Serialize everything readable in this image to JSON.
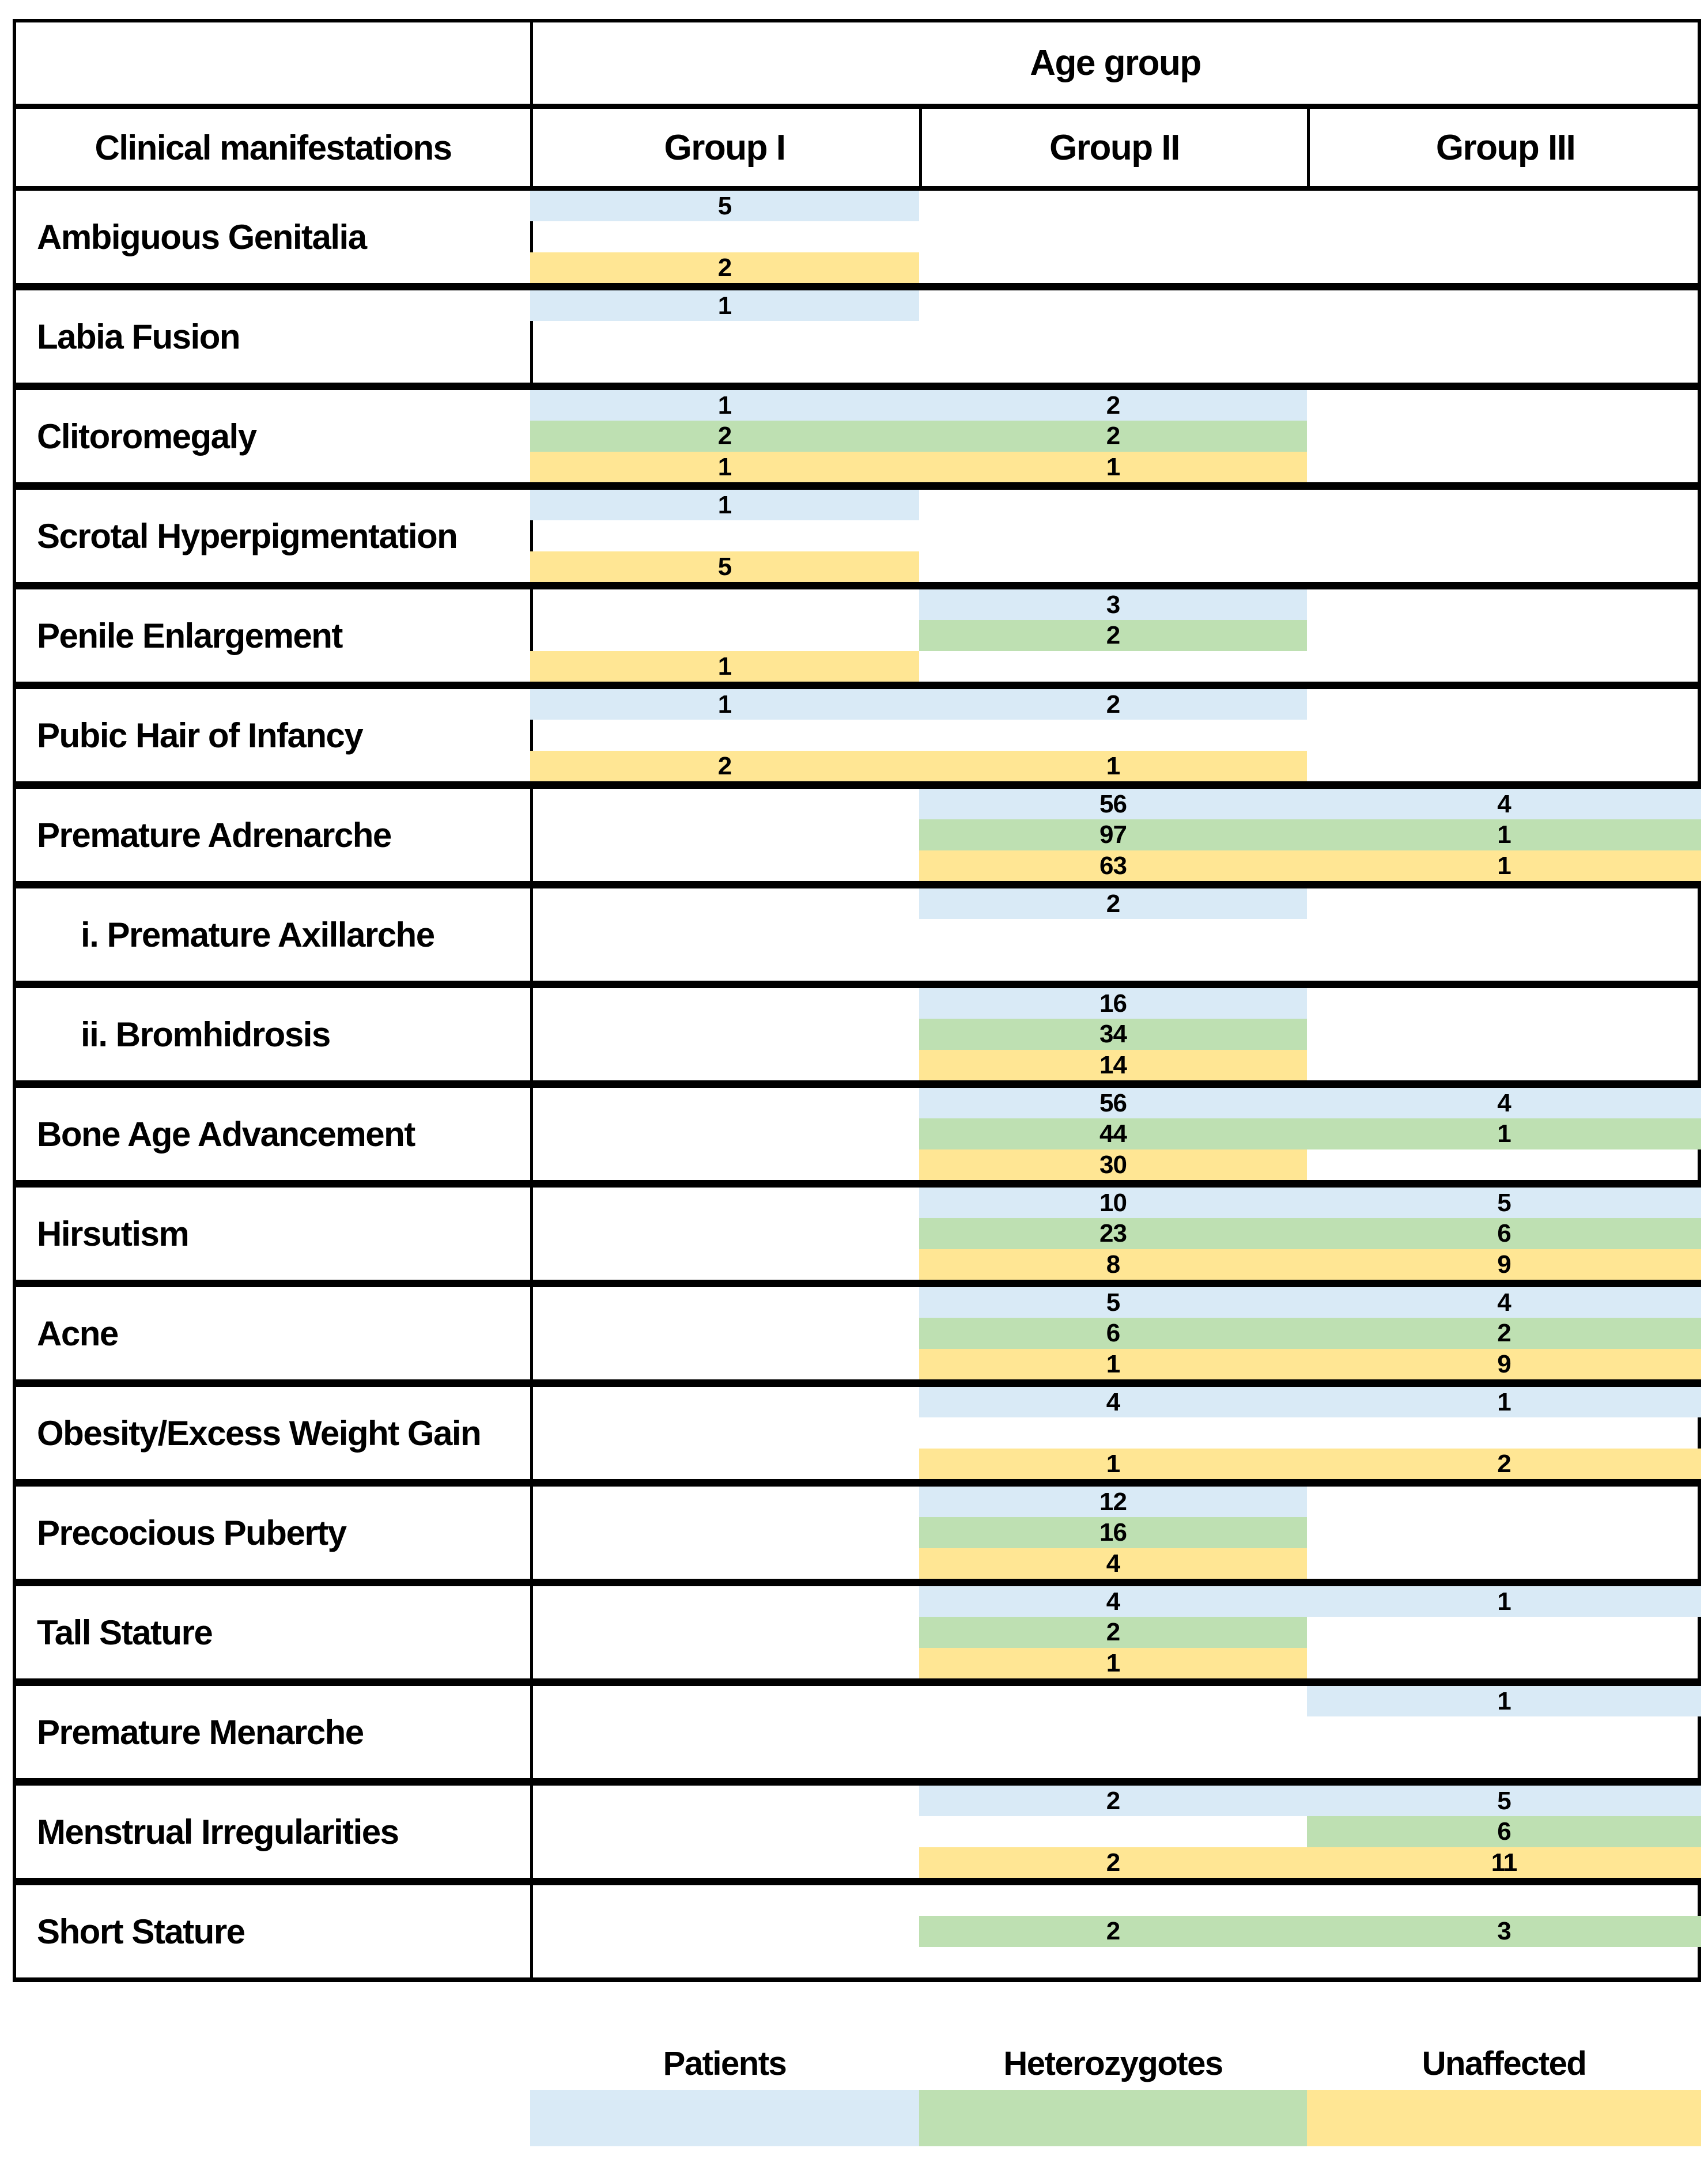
{
  "header": {
    "age_group": "Age group",
    "clinical": "Clinical manifestations",
    "groups": [
      "Group I",
      "Group II",
      "Group III"
    ]
  },
  "legend": {
    "items": [
      {
        "label": "Patients",
        "series": "patients"
      },
      {
        "label": "Heterozygotes",
        "series": "heterozygotes"
      },
      {
        "label": "Unaffected",
        "series": "unaffected"
      }
    ]
  },
  "colors": {
    "patients": "#d9eaf6",
    "heterozygotes": "#bee0b2",
    "unaffected": "#ffe694",
    "grid": "#000000"
  },
  "chart_data": {
    "type": "bar",
    "layout": "table-embedded-horizontal-bars",
    "column_header": "Age group",
    "row_header": "Clinical manifestations",
    "groups": [
      "Group I",
      "Group II",
      "Group III"
    ],
    "series_names": [
      "Patients",
      "Heterozygotes",
      "Unaffected"
    ],
    "legend_position": "bottom",
    "rows": [
      {
        "label": "Ambiguous Genitalia",
        "indent": false,
        "patients": {
          "span": [
            1,
            1
          ],
          "values": [
            [
              1,
              5
            ]
          ]
        },
        "heterozygotes": null,
        "unaffected": {
          "span": [
            1,
            1
          ],
          "values": [
            [
              1,
              2
            ]
          ]
        }
      },
      {
        "label": "Labia Fusion",
        "indent": false,
        "patients": {
          "span": [
            1,
            1
          ],
          "values": [
            [
              1,
              1
            ]
          ]
        },
        "heterozygotes": null,
        "unaffected": null
      },
      {
        "label": "Clitoromegaly",
        "indent": false,
        "patients": {
          "span": [
            1,
            2
          ],
          "values": [
            [
              1,
              1
            ],
            [
              2,
              2
            ]
          ]
        },
        "heterozygotes": {
          "span": [
            1,
            2
          ],
          "values": [
            [
              1,
              2
            ],
            [
              2,
              2
            ]
          ]
        },
        "unaffected": {
          "span": [
            1,
            2
          ],
          "values": [
            [
              1,
              1
            ],
            [
              2,
              1
            ]
          ]
        }
      },
      {
        "label": "Scrotal Hyperpigmentation",
        "indent": false,
        "patients": {
          "span": [
            1,
            1
          ],
          "values": [
            [
              1,
              1
            ]
          ]
        },
        "heterozygotes": null,
        "unaffected": {
          "span": [
            1,
            1
          ],
          "values": [
            [
              1,
              5
            ]
          ]
        }
      },
      {
        "label": "Penile Enlargement",
        "indent": false,
        "patients": {
          "span": [
            2,
            2
          ],
          "values": [
            [
              2,
              3
            ]
          ]
        },
        "heterozygotes": {
          "span": [
            2,
            2
          ],
          "values": [
            [
              2,
              2
            ]
          ]
        },
        "unaffected": {
          "span": [
            1,
            1
          ],
          "values": [
            [
              1,
              1
            ]
          ]
        }
      },
      {
        "label": "Pubic Hair of Infancy",
        "indent": false,
        "patients": {
          "span": [
            1,
            2
          ],
          "values": [
            [
              1,
              1
            ],
            [
              2,
              2
            ]
          ]
        },
        "heterozygotes": null,
        "unaffected": {
          "span": [
            1,
            2
          ],
          "values": [
            [
              1,
              2
            ],
            [
              2,
              1
            ]
          ]
        }
      },
      {
        "label": "Premature Adrenarche",
        "indent": false,
        "patients": {
          "span": [
            2,
            3
          ],
          "values": [
            [
              2,
              56
            ],
            [
              3,
              4
            ]
          ]
        },
        "heterozygotes": {
          "span": [
            2,
            3
          ],
          "values": [
            [
              2,
              97
            ],
            [
              3,
              1
            ]
          ]
        },
        "unaffected": {
          "span": [
            2,
            3
          ],
          "values": [
            [
              2,
              63
            ],
            [
              3,
              1
            ]
          ]
        }
      },
      {
        "label": "i. Premature Axillarche",
        "indent": true,
        "patients": {
          "span": [
            2,
            2
          ],
          "values": [
            [
              2,
              2
            ]
          ]
        },
        "heterozygotes": null,
        "unaffected": null
      },
      {
        "label": "ii. Bromhidrosis",
        "indent": true,
        "patients": {
          "span": [
            2,
            2
          ],
          "values": [
            [
              2,
              16
            ]
          ]
        },
        "heterozygotes": {
          "span": [
            2,
            2
          ],
          "values": [
            [
              2,
              34
            ]
          ]
        },
        "unaffected": {
          "span": [
            2,
            2
          ],
          "values": [
            [
              2,
              14
            ]
          ]
        }
      },
      {
        "label": "Bone Age Advancement",
        "indent": false,
        "patients": {
          "span": [
            2,
            3
          ],
          "values": [
            [
              2,
              56
            ],
            [
              3,
              4
            ]
          ]
        },
        "heterozygotes": {
          "span": [
            2,
            3
          ],
          "values": [
            [
              2,
              44
            ],
            [
              3,
              1
            ]
          ]
        },
        "unaffected": {
          "span": [
            2,
            2
          ],
          "values": [
            [
              2,
              30
            ]
          ]
        }
      },
      {
        "label": "Hirsutism",
        "indent": false,
        "patients": {
          "span": [
            2,
            3
          ],
          "values": [
            [
              2,
              10
            ],
            [
              3,
              5
            ]
          ]
        },
        "heterozygotes": {
          "span": [
            2,
            3
          ],
          "values": [
            [
              2,
              23
            ],
            [
              3,
              6
            ]
          ]
        },
        "unaffected": {
          "span": [
            2,
            3
          ],
          "values": [
            [
              2,
              8
            ],
            [
              3,
              9
            ]
          ]
        }
      },
      {
        "label": "Acne",
        "indent": false,
        "patients": {
          "span": [
            2,
            3
          ],
          "values": [
            [
              2,
              5
            ],
            [
              3,
              4
            ]
          ]
        },
        "heterozygotes": {
          "span": [
            2,
            3
          ],
          "values": [
            [
              2,
              6
            ],
            [
              3,
              2
            ]
          ]
        },
        "unaffected": {
          "span": [
            2,
            3
          ],
          "values": [
            [
              2,
              1
            ],
            [
              3,
              9
            ]
          ]
        }
      },
      {
        "label": "Obesity/Excess Weight Gain",
        "indent": false,
        "patients": {
          "span": [
            2,
            3
          ],
          "values": [
            [
              2,
              4
            ],
            [
              3,
              1
            ]
          ]
        },
        "heterozygotes": null,
        "unaffected": {
          "span": [
            2,
            3
          ],
          "values": [
            [
              2,
              1
            ],
            [
              3,
              2
            ]
          ]
        }
      },
      {
        "label": "Precocious Puberty",
        "indent": false,
        "patients": {
          "span": [
            2,
            2
          ],
          "values": [
            [
              2,
              12
            ]
          ]
        },
        "heterozygotes": {
          "span": [
            2,
            2
          ],
          "values": [
            [
              2,
              16
            ]
          ]
        },
        "unaffected": {
          "span": [
            2,
            2
          ],
          "values": [
            [
              2,
              4
            ]
          ]
        }
      },
      {
        "label": "Tall Stature",
        "indent": false,
        "patients": {
          "span": [
            2,
            3
          ],
          "values": [
            [
              2,
              4
            ],
            [
              3,
              1
            ]
          ]
        },
        "heterozygotes": {
          "span": [
            2,
            2
          ],
          "values": [
            [
              2,
              2
            ]
          ]
        },
        "unaffected": {
          "span": [
            2,
            2
          ],
          "values": [
            [
              2,
              1
            ]
          ]
        }
      },
      {
        "label": "Premature Menarche",
        "indent": false,
        "patients": {
          "span": [
            3,
            3
          ],
          "values": [
            [
              3,
              1
            ]
          ]
        },
        "heterozygotes": null,
        "unaffected": null
      },
      {
        "label": "Menstrual Irregularities",
        "indent": false,
        "patients": {
          "span": [
            2,
            3
          ],
          "values": [
            [
              2,
              2
            ],
            [
              3,
              5
            ]
          ]
        },
        "heterozygotes": {
          "span": [
            3,
            3
          ],
          "values": [
            [
              3,
              6
            ]
          ]
        },
        "unaffected": {
          "span": [
            2,
            3
          ],
          "values": [
            [
              2,
              2
            ],
            [
              3,
              11
            ]
          ]
        }
      },
      {
        "label": "Short Stature",
        "indent": false,
        "patients": null,
        "heterozygotes": {
          "span": [
            2,
            3
          ],
          "values": [
            [
              2,
              2
            ],
            [
              3,
              3
            ]
          ]
        },
        "unaffected": null
      }
    ]
  }
}
